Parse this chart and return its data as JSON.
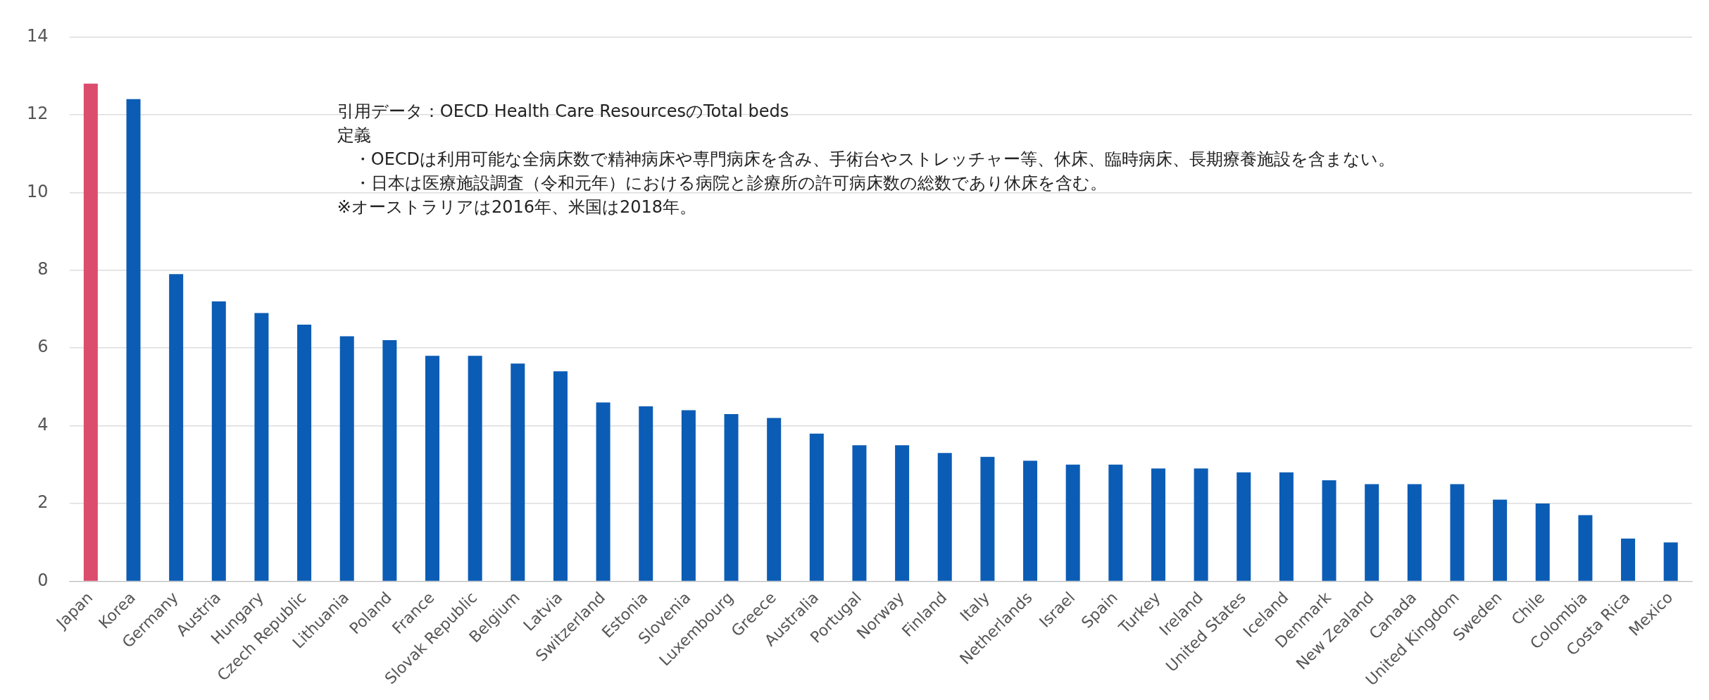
{
  "chart_data": {
    "type": "bar",
    "categories": [
      "Japan",
      "Korea",
      "Germany",
      "Austria",
      "Hungary",
      "Czech Republic",
      "Lithuania",
      "Poland",
      "France",
      "Slovak Republic",
      "Belgium",
      "Latvia",
      "Switzerland",
      "Estonia",
      "Slovenia",
      "Luxembourg",
      "Greece",
      "Australia",
      "Portugal",
      "Norway",
      "Finland",
      "Italy",
      "Netherlands",
      "Israel",
      "Spain",
      "Turkey",
      "Ireland",
      "United States",
      "Iceland",
      "Denmark",
      "New Zealand",
      "Canada",
      "United Kingdom",
      "Sweden",
      "Chile",
      "Colombia",
      "Costa Rica",
      "Mexico"
    ],
    "values": [
      12.8,
      12.4,
      7.9,
      7.2,
      6.9,
      6.6,
      6.3,
      6.2,
      5.8,
      5.8,
      5.6,
      5.4,
      4.6,
      4.5,
      4.4,
      4.3,
      4.2,
      3.8,
      3.5,
      3.5,
      3.3,
      3.2,
      3.1,
      3.0,
      3.0,
      2.9,
      2.9,
      2.8,
      2.8,
      2.6,
      2.5,
      2.5,
      2.5,
      2.1,
      2.0,
      1.7,
      1.1,
      1.0
    ],
    "colors": [
      "#dc4c6c",
      "#0b5cb5",
      "#0b5cb5",
      "#0b5cb5",
      "#0b5cb5",
      "#0b5cb5",
      "#0b5cb5",
      "#0b5cb5",
      "#0b5cb5",
      "#0b5cb5",
      "#0b5cb5",
      "#0b5cb5",
      "#0b5cb5",
      "#0b5cb5",
      "#0b5cb5",
      "#0b5cb5",
      "#0b5cb5",
      "#0b5cb5",
      "#0b5cb5",
      "#0b5cb5",
      "#0b5cb5",
      "#0b5cb5",
      "#0b5cb5",
      "#0b5cb5",
      "#0b5cb5",
      "#0b5cb5",
      "#0b5cb5",
      "#0b5cb5",
      "#0b5cb5",
      "#0b5cb5",
      "#0b5cb5",
      "#0b5cb5",
      "#0b5cb5",
      "#0b5cb5",
      "#0b5cb5",
      "#0b5cb5",
      "#0b5cb5",
      "#0b5cb5"
    ],
    "ylim": [
      0,
      14
    ],
    "yticks": [
      0,
      2,
      4,
      6,
      8,
      10,
      12,
      14
    ],
    "grid": "y",
    "legend": false,
    "annotations": [
      "引用データ：OECD Health Care ResourcesのTotal beds",
      "定義",
      "　・OECDは利用可能な全病床数で精神病床や専門病床を含み、手術台やストレッチャー等、休床、臨時病床、長期療養施設を含まない。",
      "　・日本は医療施設調査（令和元年）における病院と診療所の許可病床数の総数であり休床を含む。",
      "※オーストラリアは2016年、米国は2018年。"
    ]
  }
}
